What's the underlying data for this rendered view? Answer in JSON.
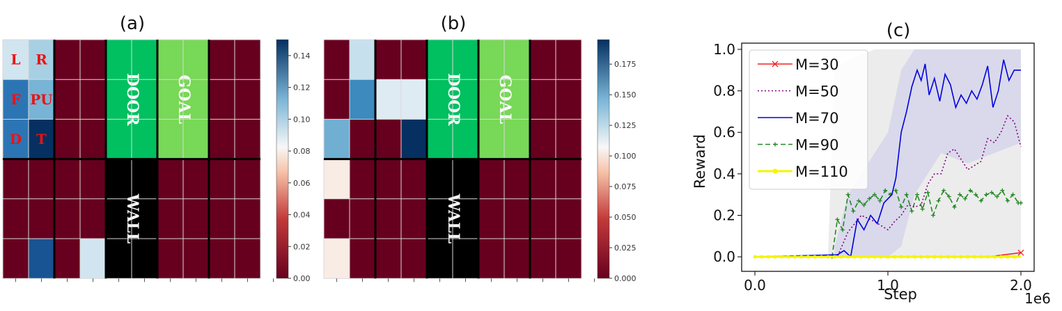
{
  "chart_data": [
    {
      "type": "heatmap",
      "title": "(a)",
      "colorbar": {
        "min": 0.0,
        "max": 0.15,
        "ticks": [
          "0.00",
          "0.02",
          "0.04",
          "0.06",
          "0.08",
          "0.10",
          "0.12",
          "0.14"
        ],
        "tick_values": [
          0,
          0.02,
          0.04,
          0.06,
          0.08,
          0.1,
          0.12,
          0.14
        ]
      },
      "grid": {
        "rows": 6,
        "cols": 10,
        "values": [
          [
            0.09,
            0.1,
            0,
            0,
            null,
            null,
            null,
            null,
            0,
            0
          ],
          [
            0.13,
            0.11,
            0,
            0,
            null,
            null,
            null,
            null,
            0,
            0
          ],
          [
            0.13,
            0.15,
            0,
            0,
            null,
            null,
            null,
            null,
            0,
            0
          ],
          [
            0,
            0,
            0,
            0,
            null,
            null,
            0,
            0,
            0,
            0
          ],
          [
            0,
            0,
            0,
            0,
            null,
            null,
            0,
            0,
            0,
            0
          ],
          [
            0,
            0.14,
            0,
            0.09,
            null,
            null,
            0,
            0,
            0,
            0
          ]
        ]
      },
      "action_labels": [
        {
          "row": 0,
          "col": 0,
          "text": "L"
        },
        {
          "row": 0,
          "col": 1,
          "text": "R"
        },
        {
          "row": 1,
          "col": 0,
          "text": "F"
        },
        {
          "row": 1,
          "col": 1,
          "text": "PU"
        },
        {
          "row": 2,
          "col": 0,
          "text": "D"
        },
        {
          "row": 2,
          "col": 1,
          "text": "T"
        }
      ],
      "blocks": [
        {
          "text": "DOOR",
          "row": 0,
          "col": 4,
          "rows": 3,
          "cols": 2,
          "color": "#00c060"
        },
        {
          "text": "GOAL",
          "row": 0,
          "col": 6,
          "rows": 3,
          "cols": 2,
          "color": "#78d857"
        },
        {
          "text": "WALL",
          "row": 3,
          "col": 4,
          "rows": 3,
          "cols": 2,
          "color": "#000000"
        }
      ]
    },
    {
      "type": "heatmap",
      "title": "(b)",
      "colorbar": {
        "min": 0.0,
        "max": 0.195,
        "ticks": [
          "0.000",
          "0.025",
          "0.050",
          "0.075",
          "0.100",
          "0.125",
          "0.150",
          "0.175"
        ],
        "tick_values": [
          0,
          0.025,
          0.05,
          0.075,
          0.1,
          0.125,
          0.15,
          0.175
        ]
      },
      "grid": {
        "rows": 6,
        "cols": 10,
        "values": [
          [
            0,
            0.12,
            0,
            0,
            null,
            null,
            null,
            null,
            0,
            0
          ],
          [
            0,
            0.16,
            0.11,
            0.11,
            null,
            null,
            null,
            null,
            0,
            0
          ],
          [
            0.145,
            0,
            0,
            0.195,
            null,
            null,
            null,
            null,
            0,
            0
          ],
          [
            0.09,
            0,
            0,
            0,
            null,
            null,
            0,
            0,
            0,
            0
          ],
          [
            0,
            0,
            0,
            0,
            null,
            null,
            0,
            0,
            0,
            0
          ],
          [
            0.09,
            0,
            0,
            0,
            null,
            null,
            0,
            0,
            0,
            0
          ]
        ]
      },
      "blocks": [
        {
          "text": "DOOR",
          "row": 0,
          "col": 4,
          "rows": 3,
          "cols": 2,
          "color": "#00c060"
        },
        {
          "text": "GOAL",
          "row": 0,
          "col": 6,
          "rows": 3,
          "cols": 2,
          "color": "#78d857"
        },
        {
          "text": "WALL",
          "row": 3,
          "col": 4,
          "rows": 3,
          "cols": 2,
          "color": "#000000"
        }
      ]
    },
    {
      "type": "line",
      "title": "(c)",
      "xlabel": "Step",
      "ylabel": "Reward",
      "x_offset_text": "1e6",
      "xlim": [
        0,
        2.0
      ],
      "ylim": [
        -0.07,
        1.03
      ],
      "xticks": [
        0.0,
        1.0,
        2.0
      ],
      "xtick_labels": [
        "0.0",
        "1.0",
        "2.0"
      ],
      "yticks": [
        0.0,
        0.2,
        0.4,
        0.6,
        0.8,
        1.0
      ],
      "ytick_labels": [
        "0.0",
        "0.2",
        "0.4",
        "0.6",
        "0.8",
        "1.0"
      ],
      "legend_position": "upper-left",
      "series": [
        {
          "name": "M=30",
          "color": "#ee2222",
          "dash": "solid",
          "marker": "x",
          "x": [
            0,
            0.25,
            0.5,
            0.75,
            1.0,
            1.25,
            1.5,
            1.75,
            2.0
          ],
          "y": [
            0,
            0,
            0,
            0,
            0,
            0,
            0,
            0,
            0.02
          ]
        },
        {
          "name": "M=50",
          "color": "#800080",
          "dash": "dotted",
          "marker": "none",
          "x": [
            0,
            0.62,
            0.7,
            0.8,
            0.9,
            1.0,
            1.05,
            1.1,
            1.15,
            1.2,
            1.25,
            1.3,
            1.35,
            1.4,
            1.45,
            1.5,
            1.55,
            1.6,
            1.65,
            1.7,
            1.75,
            1.8,
            1.85,
            1.9,
            1.95,
            2.0
          ],
          "y": [
            0,
            0,
            0.12,
            0.2,
            0.17,
            0.13,
            0.17,
            0.2,
            0.25,
            0.24,
            0.25,
            0.35,
            0.4,
            0.4,
            0.5,
            0.52,
            0.47,
            0.42,
            0.44,
            0.46,
            0.57,
            0.55,
            0.6,
            0.68,
            0.65,
            0.53
          ]
        },
        {
          "name": "M=70",
          "color": "#0000dd",
          "dash": "solid",
          "marker": "none",
          "x": [
            0,
            0.62,
            0.67,
            0.72,
            0.77,
            0.82,
            0.87,
            0.92,
            0.97,
            1.0,
            1.03,
            1.06,
            1.1,
            1.14,
            1.18,
            1.22,
            1.25,
            1.28,
            1.31,
            1.35,
            1.39,
            1.43,
            1.47,
            1.51,
            1.55,
            1.59,
            1.63,
            1.67,
            1.71,
            1.75,
            1.79,
            1.83,
            1.87,
            1.91,
            1.95,
            2.0
          ],
          "y": [
            0,
            0.01,
            0.03,
            0.0,
            0.18,
            0.13,
            0.2,
            0.16,
            0.26,
            0.28,
            0.3,
            0.38,
            0.6,
            0.7,
            0.82,
            0.9,
            0.85,
            0.93,
            0.78,
            0.86,
            0.75,
            0.88,
            0.83,
            0.72,
            0.78,
            0.74,
            0.8,
            0.76,
            0.83,
            0.92,
            0.72,
            0.8,
            0.95,
            0.85,
            0.9,
            0.9
          ]
        },
        {
          "name": "M=90",
          "color": "#228822",
          "dash": "dashed",
          "marker": "+",
          "x": [
            0,
            0.58,
            0.62,
            0.66,
            0.7,
            0.74,
            0.78,
            0.82,
            0.86,
            0.9,
            0.94,
            0.98,
            1.02,
            1.06,
            1.1,
            1.14,
            1.18,
            1.22,
            1.26,
            1.3,
            1.34,
            1.38,
            1.42,
            1.46,
            1.5,
            1.54,
            1.58,
            1.62,
            1.66,
            1.7,
            1.74,
            1.78,
            1.82,
            1.86,
            1.9,
            1.94,
            1.98,
            2.0
          ],
          "y": [
            0,
            0,
            0.18,
            0.13,
            0.3,
            0.22,
            0.27,
            0.25,
            0.28,
            0.3,
            0.27,
            0.32,
            0.3,
            0.32,
            0.24,
            0.3,
            0.22,
            0.3,
            0.23,
            0.31,
            0.2,
            0.27,
            0.32,
            0.29,
            0.24,
            0.3,
            0.28,
            0.32,
            0.3,
            0.27,
            0.3,
            0.31,
            0.29,
            0.32,
            0.27,
            0.3,
            0.26,
            0.26
          ]
        },
        {
          "name": "M=110",
          "color": "#f5f500",
          "dash": "solid",
          "marker": "dot",
          "x": [
            0,
            0.25,
            0.5,
            0.75,
            1.0,
            1.25,
            1.5,
            1.75,
            2.0
          ],
          "y": [
            0,
            0,
            0,
            0,
            0,
            0,
            0,
            0,
            0
          ]
        }
      ]
    }
  ]
}
